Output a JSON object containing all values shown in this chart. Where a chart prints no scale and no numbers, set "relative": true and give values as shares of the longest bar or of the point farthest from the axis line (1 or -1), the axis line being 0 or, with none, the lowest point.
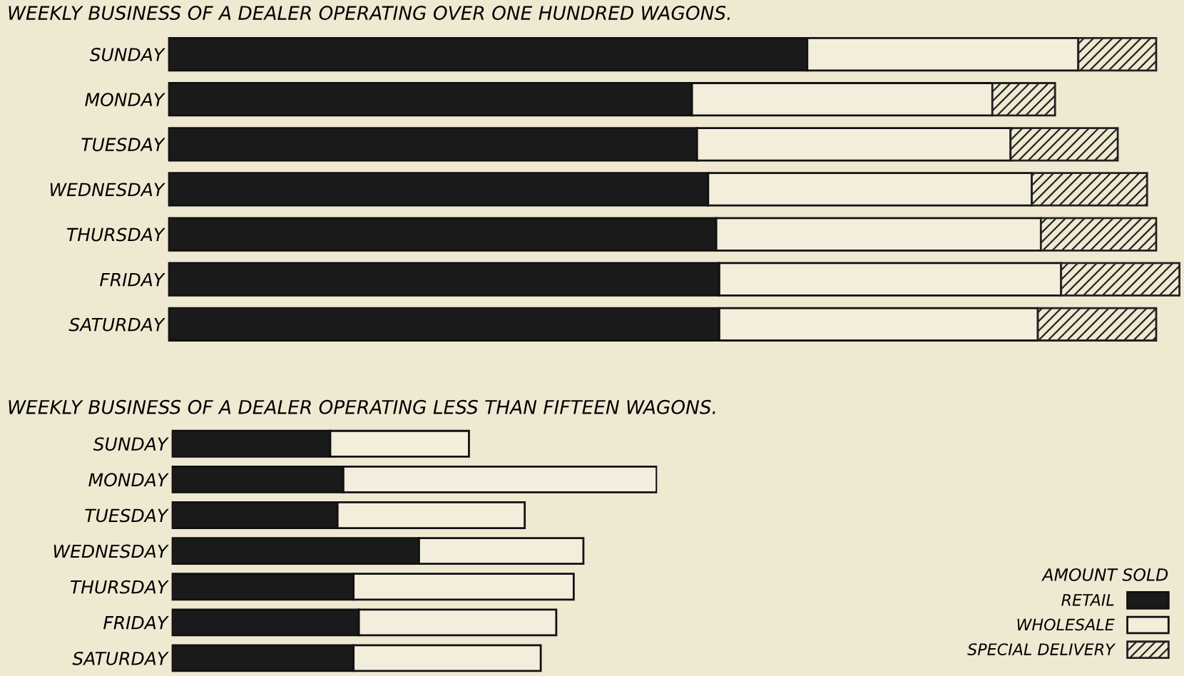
{
  "chart_data": [
    {
      "type": "bar",
      "orientation": "horizontal",
      "stacked": true,
      "relative": true,
      "title": "WEEKLY BUSINESS OF A DEALER OPERATING OVER ONE HUNDRED WAGONS.",
      "categories": [
        "SUNDAY",
        "MONDAY",
        "TUESDAY",
        "WEDNESDAY",
        "THURSDAY",
        "FRIDAY",
        "SATURDAY"
      ],
      "series": [
        {
          "name": "RETAIL",
          "color": "#1a1a1a",
          "values": [
            0.632,
            0.518,
            0.523,
            0.534,
            0.542,
            0.545,
            0.545
          ]
        },
        {
          "name": "WHOLESALE",
          "color": "#f3eedb",
          "values": [
            0.268,
            0.297,
            0.31,
            0.32,
            0.321,
            0.338,
            0.315
          ]
        },
        {
          "name": "SPECIAL DELIVERY",
          "color": "#222222",
          "values": [
            0.077,
            0.062,
            0.106,
            0.114,
            0.114,
            0.117,
            0.117
          ]
        }
      ],
      "legend": "bottom right",
      "legend_title": "AMOUNT SOLD"
    },
    {
      "type": "bar",
      "orientation": "horizontal",
      "stacked": true,
      "relative": true,
      "title": "WEEKLY BUSINESS OF A DEALER OPERATING LESS THAN FIFTEEN WAGONS.",
      "categories": [
        "SUNDAY",
        "MONDAY",
        "TUESDAY",
        "WEDNESDAY",
        "THURSDAY",
        "FRIDAY",
        "SATURDAY"
      ],
      "series": [
        {
          "color": "#1a1a1a",
          "values": [
            0.327,
            0.354,
            0.342,
            0.51,
            0.375,
            0.386,
            0.375
          ]
        },
        {
          "color": "#f3eedb",
          "values": [
            0.286,
            0.646,
            0.386,
            0.339,
            0.454,
            0.407,
            0.386
          ]
        }
      ]
    }
  ]
}
